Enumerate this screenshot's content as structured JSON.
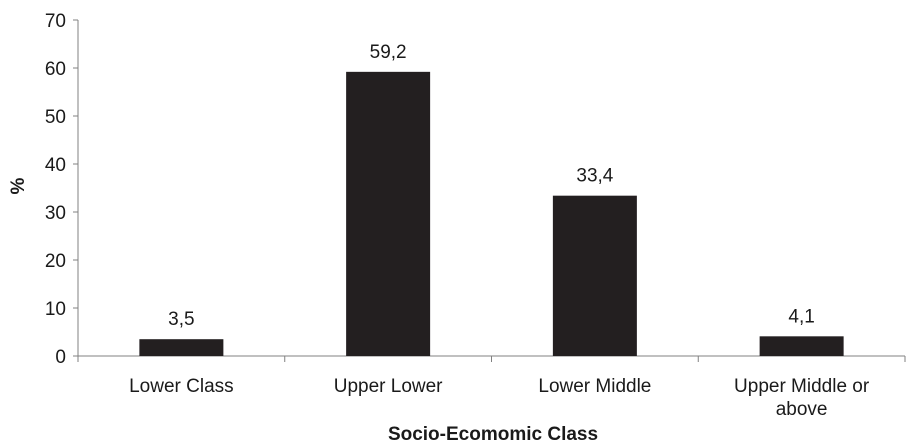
{
  "chart_data": {
    "type": "bar",
    "categories": [
      "Lower Class",
      "Upper Lower",
      "Lower Middle",
      "Upper Middle or above"
    ],
    "values": [
      3.5,
      59.2,
      33.4,
      4.1
    ],
    "data_labels": [
      "3,5",
      "59,2",
      "33,4",
      "4,1"
    ],
    "ylim": [
      0,
      70
    ],
    "yticks": [
      "0",
      "10",
      "20",
      "30",
      "40",
      "50",
      "60",
      "70"
    ],
    "ytick_values": [
      0,
      10,
      20,
      30,
      40,
      50,
      60,
      70
    ],
    "xlabel": "Socio-Ecomomic Class",
    "ylabel": "%",
    "grid": false,
    "bar_color": "#231f20",
    "axis_color": "#808080"
  }
}
